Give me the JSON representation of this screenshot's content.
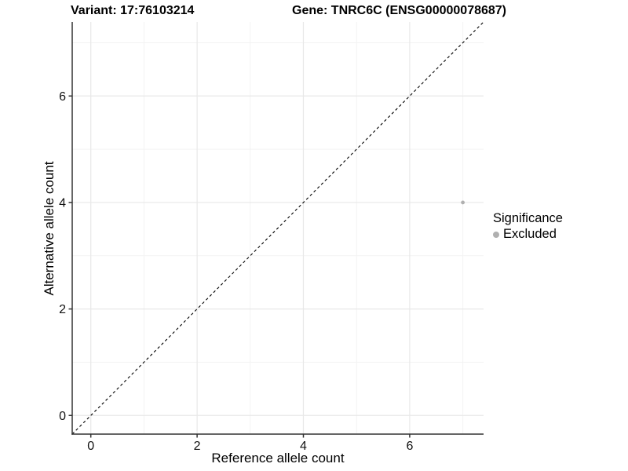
{
  "titles": {
    "variant": "Variant: 17:76103214",
    "gene": "Gene: TNRC6C (ENSG00000078687)"
  },
  "chart_data": {
    "type": "scatter",
    "title_left": "Variant: 17:76103214",
    "title_right": "Gene: TNRC6C (ENSG00000078687)",
    "xlabel": "Reference allele count",
    "ylabel": "Alternative allele count",
    "points": [
      {
        "x": 7,
        "y": 4,
        "significance": "Excluded"
      }
    ],
    "identity_line": {
      "slope": 1,
      "intercept": 0,
      "style": "dashed",
      "color": "#000000"
    },
    "xlim": [
      -0.35,
      7.39
    ],
    "ylim": [
      -0.35,
      7.39
    ],
    "xticks": [
      0,
      2,
      4,
      6
    ],
    "yticks": [
      0,
      2,
      4,
      6
    ],
    "minor_xticks": [
      1,
      3,
      5,
      7
    ],
    "minor_yticks": [
      1,
      3,
      5,
      7
    ],
    "grid": true,
    "legend": {
      "position": "right",
      "title": "Significance",
      "items": [
        {
          "label": "Excluded",
          "color": "#b0b0b0"
        }
      ]
    },
    "point_color": "#b0b0b0",
    "colors": {
      "background": "#ffffff",
      "grid_major": "#e8e8e8",
      "grid_minor": "#f3f3f3",
      "axis": "#333333",
      "tick_text": "#111111"
    }
  }
}
